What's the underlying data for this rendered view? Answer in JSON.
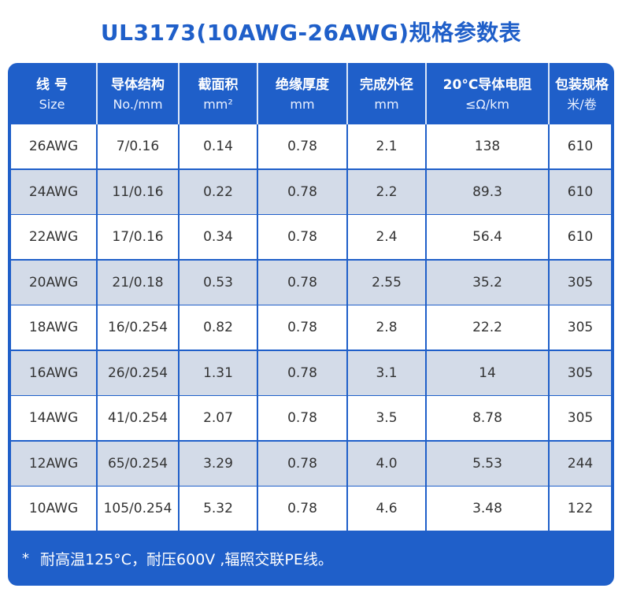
{
  "title": "UL3173(10AWG-26AWG)规格参数表",
  "headers": [
    {
      "zh": "线 号",
      "en": "Size"
    },
    {
      "zh": "导体结构",
      "en": "No./mm"
    },
    {
      "zh": "截面积",
      "en": "mm²"
    },
    {
      "zh": "绝缘厚度",
      "en": "mm"
    },
    {
      "zh": "完成外径",
      "en": "mm"
    },
    {
      "zh": "20°C导体电阻",
      "en": "≤Ω/km"
    },
    {
      "zh": "包装规格",
      "en": "米/卷"
    }
  ],
  "rows": [
    [
      "26AWG",
      "7/0.16",
      "0.14",
      "0.78",
      "2.1",
      "138",
      "610"
    ],
    [
      "24AWG",
      "11/0.16",
      "0.22",
      "0.78",
      "2.2",
      "89.3",
      "610"
    ],
    [
      "22AWG",
      "17/0.16",
      "0.34",
      "0.78",
      "2.4",
      "56.4",
      "610"
    ],
    [
      "20AWG",
      "21/0.18",
      "0.53",
      "0.78",
      "2.55",
      "35.2",
      "305"
    ],
    [
      "18AWG",
      "16/0.254",
      "0.82",
      "0.78",
      "2.8",
      "22.2",
      "305"
    ],
    [
      "16AWG",
      "26/0.254",
      "1.31",
      "0.78",
      "3.1",
      "14",
      "305"
    ],
    [
      "14AWG",
      "41/0.254",
      "2.07",
      "0.78",
      "3.5",
      "8.78",
      "305"
    ],
    [
      "12AWG",
      "65/0.254",
      "3.29",
      "0.78",
      "4.0",
      "5.53",
      "244"
    ],
    [
      "10AWG",
      "105/0.254",
      "5.32",
      "0.78",
      "4.6",
      "3.48",
      "122"
    ]
  ],
  "note": {
    "marker": "*",
    "text": "耐高温125°C，耐压600V ,辐照交联PE线。"
  },
  "colors": {
    "accent": "#1f5fc9",
    "row_alt": "#d3dbe8",
    "row": "#ffffff"
  }
}
